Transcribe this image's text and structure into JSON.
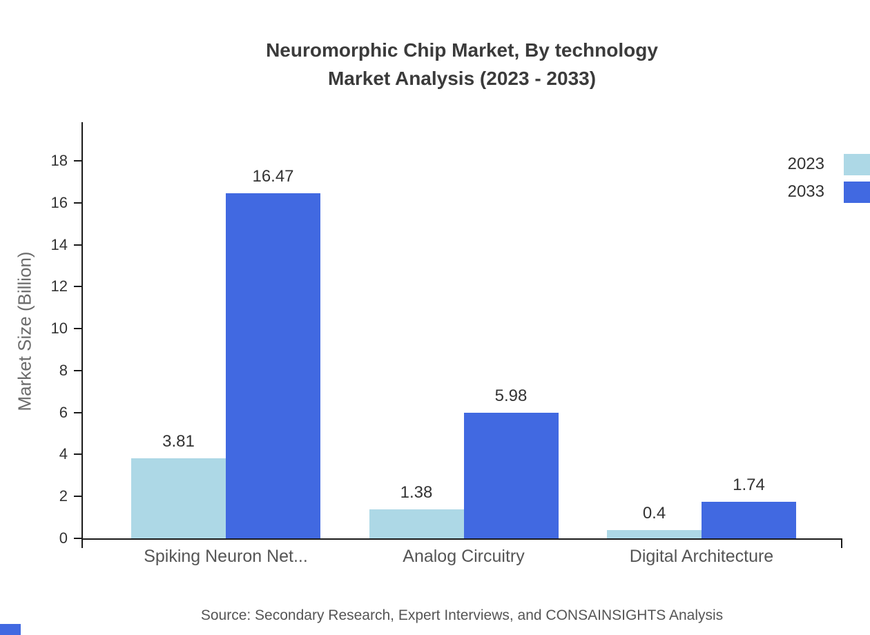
{
  "title": {
    "line1": "Neuromorphic Chip Market, By technology",
    "line2": "Market Analysis (2023 - 2033)"
  },
  "source": "Source: Secondary Research, Expert Interviews, and CONSAINSIGHTS Analysis",
  "colors": {
    "series_2023": "#add8e6",
    "series_2033": "#4169e1",
    "axis": "#1a1a1a",
    "text": "#333333"
  },
  "chart_data": {
    "type": "bar",
    "title": "Neuromorphic Chip Market, By technology Market Analysis (2023 - 2033)",
    "categories": [
      "Spiking Neuron Net...",
      "Analog Circuitry",
      "Digital Architecture"
    ],
    "series": [
      {
        "name": "2023",
        "color": "#add8e6",
        "values": [
          3.81,
          1.38,
          0.4
        ]
      },
      {
        "name": "2033",
        "color": "#4169e1",
        "values": [
          16.47,
          5.98,
          1.74
        ]
      }
    ],
    "xlabel": "",
    "ylabel": "Market Size (Billion)",
    "ylim": [
      0,
      18
    ],
    "yticks": [
      0,
      2,
      4,
      6,
      8,
      10,
      12,
      14,
      16,
      18
    ],
    "grid": false,
    "legend_position": "top-right",
    "value_labels": true
  }
}
